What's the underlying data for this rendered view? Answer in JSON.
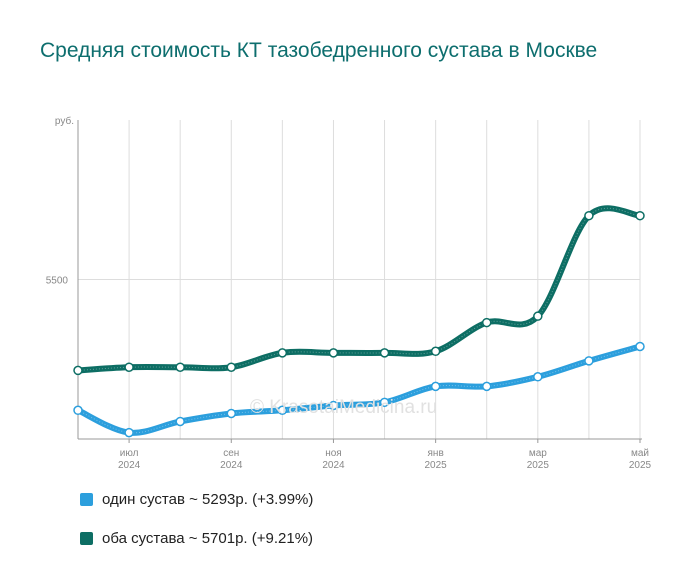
{
  "title": "Средняя стоимость КТ тазобедренного сустава в Москве",
  "watermark": "© KrasotaiMedicina.ru",
  "legend": [
    {
      "label": "один сустав ~ 5293р. (+3.99%)",
      "color": "#2c9fdd"
    },
    {
      "label": "оба сустава ~ 5701р. (+9.21%)",
      "color": "#0d6e64"
    }
  ],
  "chart_data": {
    "type": "line",
    "y_unit": "руб.",
    "ylim": [
      5000,
      6000
    ],
    "y_ticks": [
      5500
    ],
    "grid": true,
    "x_ticks": [
      {
        "index": 1,
        "month": "июл",
        "year": "2024"
      },
      {
        "index": 3,
        "month": "сен",
        "year": "2024"
      },
      {
        "index": 5,
        "month": "ноя",
        "year": "2024"
      },
      {
        "index": 7,
        "month": "янв",
        "year": "2025"
      },
      {
        "index": 9,
        "month": "мар",
        "year": "2025"
      },
      {
        "index": 11,
        "month": "май",
        "year": "2025"
      }
    ],
    "point_count": 12,
    "series": [
      {
        "name": "один сустав",
        "color": "#2c9fdd",
        "values": [
          5090,
          5020,
          5055,
          5080,
          5090,
          5105,
          5115,
          5165,
          5165,
          5195,
          5245,
          5290
        ]
      },
      {
        "name": "оба сустава",
        "color": "#0d6e64",
        "values": [
          5215,
          5225,
          5225,
          5225,
          5270,
          5270,
          5270,
          5275,
          5365,
          5385,
          5700,
          5700
        ]
      }
    ]
  }
}
